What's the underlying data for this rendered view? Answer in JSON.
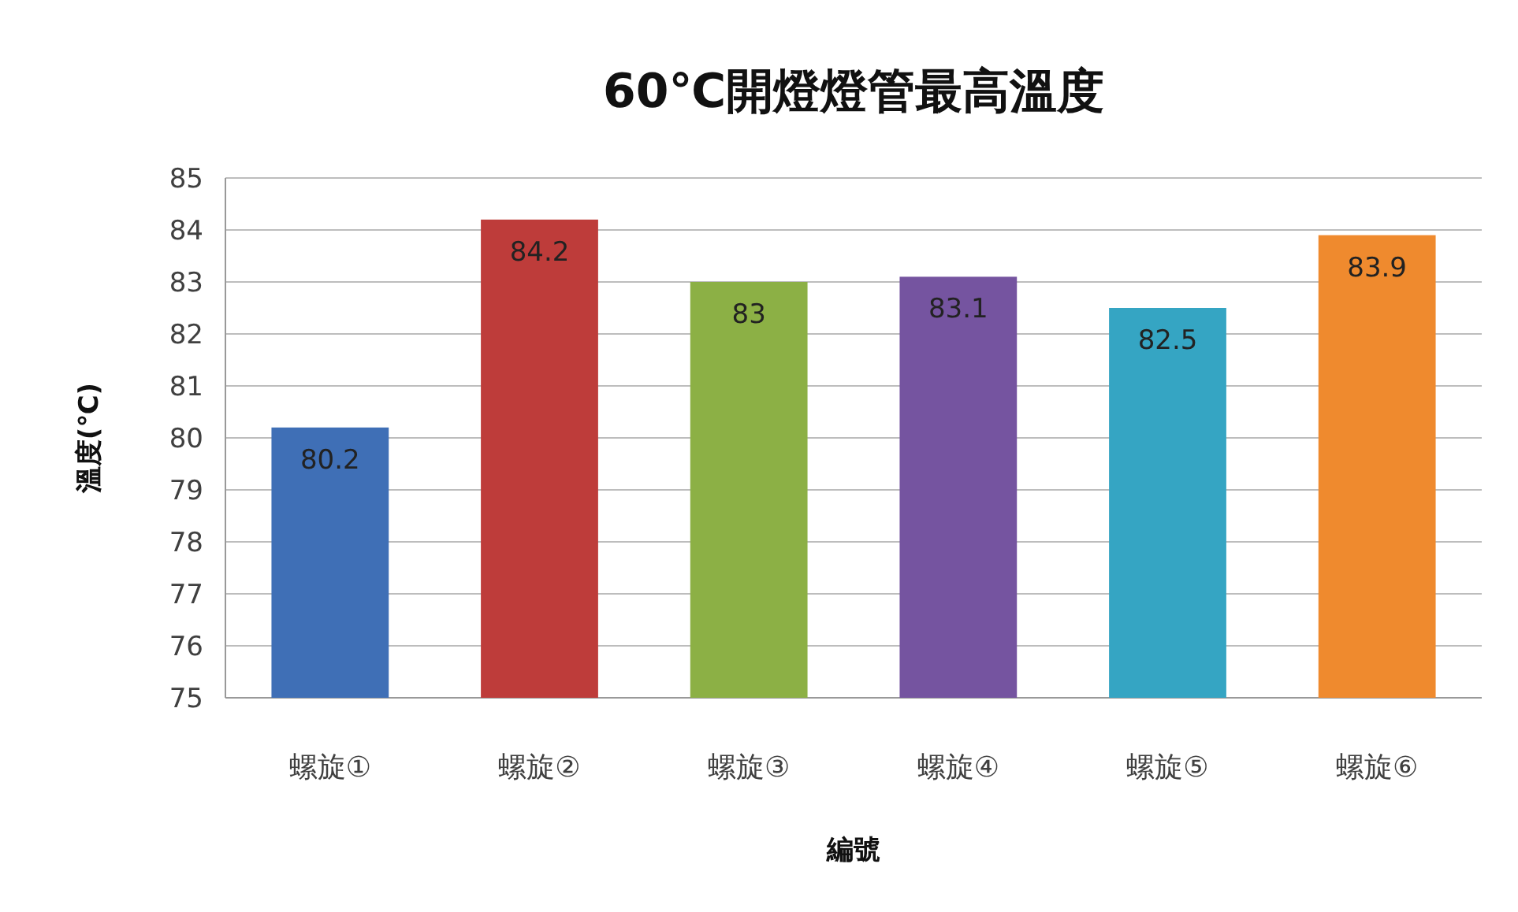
{
  "chart_data": {
    "type": "bar",
    "title": "60℃開燈燈管最高溫度",
    "xlabel": "編號",
    "ylabel": "溫度(℃)",
    "categories": [
      "螺旋①",
      "螺旋②",
      "螺旋③",
      "螺旋④",
      "螺旋⑤",
      "螺旋⑥"
    ],
    "values": [
      80.2,
      84.2,
      83,
      83.1,
      82.5,
      83.9
    ],
    "colors": [
      "#3f6fb6",
      "#be3c3a",
      "#8cb045",
      "#7554a0",
      "#35a5c3",
      "#ef8a2e"
    ],
    "ylim": [
      75,
      85
    ],
    "yticks": [
      75,
      76,
      77,
      78,
      79,
      80,
      81,
      82,
      83,
      84,
      85
    ],
    "grid": "y",
    "data_labels": true
  }
}
